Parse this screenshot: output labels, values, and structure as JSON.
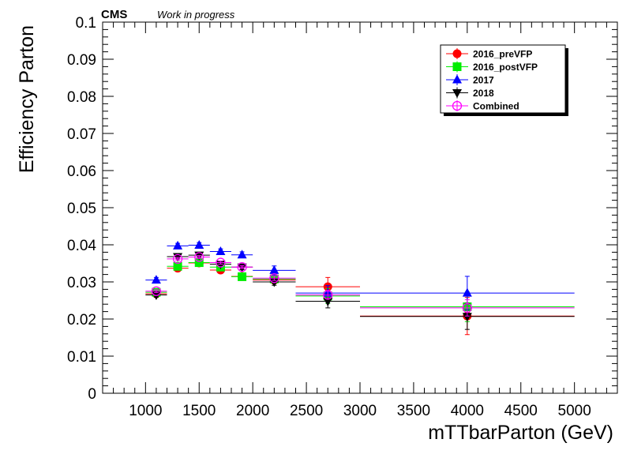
{
  "header": {
    "experiment": "CMS",
    "status": "Work in progress"
  },
  "chart_data": {
    "type": "scatter",
    "xlabel": "mTTbarParton (GeV)",
    "ylabel": "Efficiency Parton",
    "xlim": [
      600,
      5400
    ],
    "ylim": [
      0,
      0.1
    ],
    "x_ticks": [
      1000,
      1500,
      2000,
      2500,
      3000,
      3500,
      4000,
      4500,
      5000
    ],
    "x_tick_labels": [
      "1000",
      "1500",
      "2000",
      "2500",
      "3000",
      "3500",
      "4000",
      "4500",
      "5000"
    ],
    "y_ticks": [
      0,
      0.01,
      0.02,
      0.03,
      0.04,
      0.05,
      0.06,
      0.07,
      0.08,
      0.09,
      0.1
    ],
    "y_tick_labels": [
      "0",
      "0.01",
      "0.02",
      "0.03",
      "0.04",
      "0.05",
      "0.06",
      "0.07",
      "0.08",
      "0.09",
      "0.1"
    ],
    "grid": false,
    "legend_position": "top-right",
    "bins": [
      {
        "x": 1100,
        "low": 1000,
        "high": 1200
      },
      {
        "x": 1300,
        "low": 1200,
        "high": 1400
      },
      {
        "x": 1500,
        "low": 1400,
        "high": 1600
      },
      {
        "x": 1700,
        "low": 1600,
        "high": 1800
      },
      {
        "x": 1900,
        "low": 1800,
        "high": 2000
      },
      {
        "x": 2200,
        "low": 2000,
        "high": 2400
      },
      {
        "x": 2700,
        "low": 2400,
        "high": 3000
      },
      {
        "x": 4000,
        "low": 3000,
        "high": 5000
      }
    ],
    "series": [
      {
        "name": "2016_preVFP",
        "color": "#ff0000",
        "marker": "circle",
        "values": [
          0.0268,
          0.0337,
          0.0351,
          0.0332,
          0.0315,
          0.0305,
          0.0287,
          0.0208
        ],
        "errors": [
          0.0008,
          0.0008,
          0.0008,
          0.0008,
          0.0008,
          0.001,
          0.0025,
          0.005
        ]
      },
      {
        "name": "2016_postVFP",
        "color": "#00ee00",
        "marker": "square",
        "values": [
          0.0272,
          0.0342,
          0.0352,
          0.034,
          0.0314,
          0.0308,
          0.0262,
          0.0233
        ],
        "errors": [
          0.0008,
          0.0008,
          0.0008,
          0.0008,
          0.0008,
          0.001,
          0.002,
          0.004
        ]
      },
      {
        "name": "2017",
        "color": "#0000ff",
        "marker": "triangle-up",
        "values": [
          0.0305,
          0.0397,
          0.0399,
          0.0382,
          0.0373,
          0.0331,
          0.027,
          0.027
        ],
        "errors": [
          0.0007,
          0.0007,
          0.0007,
          0.0007,
          0.0008,
          0.0012,
          0.002,
          0.0045
        ]
      },
      {
        "name": "2018",
        "color": "#000000",
        "marker": "triangle-down",
        "values": [
          0.0265,
          0.0368,
          0.0372,
          0.0348,
          0.034,
          0.03,
          0.0248,
          0.0207
        ],
        "errors": [
          0.0006,
          0.0006,
          0.0006,
          0.0006,
          0.0007,
          0.0009,
          0.0018,
          0.0035
        ]
      },
      {
        "name": "Combined",
        "color": "#ff00ff",
        "marker": "open-circle",
        "values": [
          0.0275,
          0.0362,
          0.0367,
          0.0352,
          0.034,
          0.031,
          0.0265,
          0.023
        ],
        "errors": [
          0.0004,
          0.0004,
          0.0004,
          0.0004,
          0.0004,
          0.0006,
          0.001,
          0.0022
        ]
      }
    ]
  }
}
